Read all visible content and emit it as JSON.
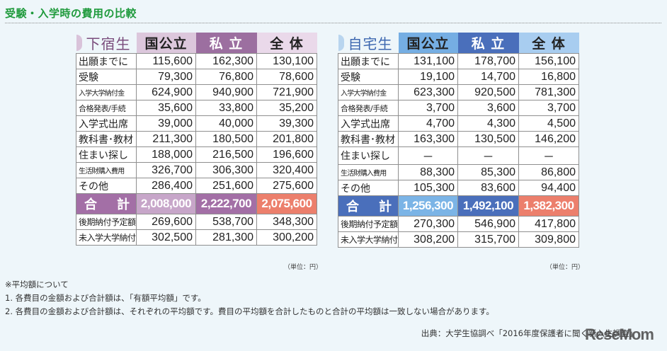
{
  "page": {
    "title": "受験・入学時の費用の比較"
  },
  "colors": {
    "title_green": "#1f9a3c",
    "geshuku_accent": "#7a4c7c",
    "geshuku_header_kokukoritsu": "#dcc7dc",
    "geshuku_header_shiritsu": "#9c6fa0",
    "geshuku_header_zentai": "#ead9ea",
    "geshuku_total_label": "#a36fa6",
    "geshuku_total_kokukoritsu": "#c7a6c9",
    "geshuku_total_shiritsu": "#a36fa6",
    "total_zentai": "#ec7f6c",
    "jitaku_accent": "#3d67b0",
    "jitaku_header_kokukoritsu": "#75aee3",
    "jitaku_header_shiritsu": "#4a6fbb",
    "jitaku_header_zentai": "#a8cdf0",
    "jitaku_total_label": "#4a6fbb",
    "jitaku_total_kokukoritsu": "#7bb4e6"
  },
  "tables": {
    "geshuku": {
      "name": "下宿生",
      "columns": [
        "国公立",
        "私 立",
        "全 体"
      ],
      "rows": [
        {
          "label": "出願までに",
          "values": [
            "115,600",
            "162,300",
            "130,100"
          ]
        },
        {
          "label": "受験",
          "values": [
            "79,300",
            "76,800",
            "78,600"
          ]
        },
        {
          "label": "入学大学納付金",
          "values": [
            "624,900",
            "940,900",
            "721,900"
          ]
        },
        {
          "label": "合格発表/手続",
          "values": [
            "35,600",
            "33,800",
            "35,200"
          ]
        },
        {
          "label": "入学式出席",
          "values": [
            "39,000",
            "40,000",
            "39,300"
          ]
        },
        {
          "label": "教科書･教材",
          "values": [
            "211,300",
            "180,500",
            "201,800"
          ]
        },
        {
          "label": "住まい探し",
          "values": [
            "188,000",
            "216,500",
            "196,600"
          ]
        },
        {
          "label": "生活財購入費用",
          "values": [
            "326,700",
            "306,300",
            "320,400"
          ]
        },
        {
          "label": "その他",
          "values": [
            "286,400",
            "251,600",
            "275,600"
          ]
        }
      ],
      "total": {
        "label_left": "合",
        "label_right": "計",
        "values": [
          "2,008,000",
          "2,222,700",
          "2,075,600"
        ]
      },
      "extra_rows": [
        {
          "label": "後期納付予定額",
          "values": [
            "269,600",
            "538,700",
            "348,300"
          ]
        },
        {
          "label": "未入学大学納付金",
          "values": [
            "302,500",
            "281,300",
            "300,200"
          ]
        }
      ],
      "unit": "（単位：円）"
    },
    "jitaku": {
      "name": "自宅生",
      "columns": [
        "国公立",
        "私 立",
        "全 体"
      ],
      "rows": [
        {
          "label": "出願までに",
          "values": [
            "131,100",
            "178,700",
            "156,100"
          ]
        },
        {
          "label": "受験",
          "values": [
            "19,100",
            "14,700",
            "16,800"
          ]
        },
        {
          "label": "入学大学納付金",
          "values": [
            "623,300",
            "920,500",
            "781,300"
          ]
        },
        {
          "label": "合格発表/手続",
          "values": [
            "3,700",
            "3,600",
            "3,700"
          ]
        },
        {
          "label": "入学式出席",
          "values": [
            "4,700",
            "4,300",
            "4,500"
          ]
        },
        {
          "label": "教科書･教材",
          "values": [
            "163,300",
            "130,500",
            "146,200"
          ]
        },
        {
          "label": "住まい探し",
          "values": [
            "－",
            "－",
            "－"
          ]
        },
        {
          "label": "生活財購入費用",
          "values": [
            "88,300",
            "85,300",
            "86,800"
          ]
        },
        {
          "label": "その他",
          "values": [
            "105,300",
            "83,600",
            "94,400"
          ]
        }
      ],
      "total": {
        "label_left": "合",
        "label_right": "計",
        "values": [
          "1,256,300",
          "1,492,100",
          "1,382,300"
        ]
      },
      "extra_rows": [
        {
          "label": "後期納付予定額",
          "values": [
            "270,300",
            "546,900",
            "417,800"
          ]
        },
        {
          "label": "未入学大学納付金",
          "values": [
            "308,200",
            "315,700",
            "309,800"
          ]
        }
      ],
      "unit": "（単位：円）"
    }
  },
  "notes": {
    "heading": "※平均額について",
    "items": [
      "1. 各費目の金額および合計額は、「有額平均額」です。",
      "2. 各費目の金額および合計額は、それぞれの平均額です。費目の平均額を合計したものと合計の平均額は一致しない場合があります。"
    ]
  },
  "source": "出典：大学生協調べ「2016年度保護者に聞く新入生調査」",
  "watermark": "ReseMom"
}
